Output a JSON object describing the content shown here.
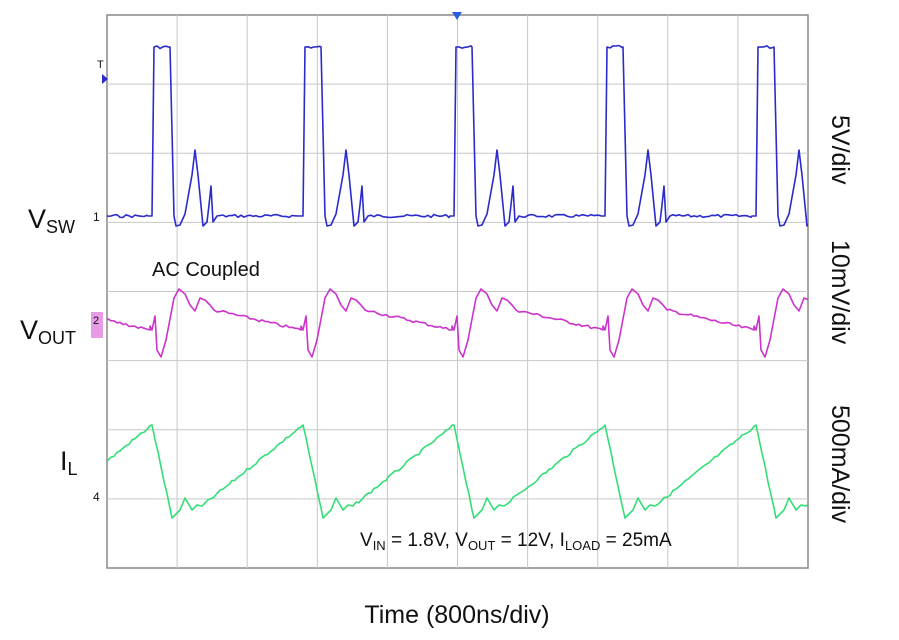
{
  "traces": [
    {
      "main": "V",
      "sub": "SW",
      "scale": "5V/div",
      "marker": "1"
    },
    {
      "main": "V",
      "sub": "OUT",
      "scale": "10mV/div",
      "marker": "2"
    },
    {
      "main": "I",
      "sub": "L",
      "scale": "500mA/div",
      "marker": "4"
    }
  ],
  "trigger_marker": "T",
  "note": "AC Coupled",
  "conditions": [
    {
      "main": "V",
      "sub": "IN",
      "rest": " = 1.8V, "
    },
    {
      "main": "V",
      "sub": "OUT",
      "rest": " = 12V, "
    },
    {
      "main": "I",
      "sub": "LOAD",
      "rest": " = 25mA"
    }
  ],
  "x_label": "Time (800ns/div)"
}
